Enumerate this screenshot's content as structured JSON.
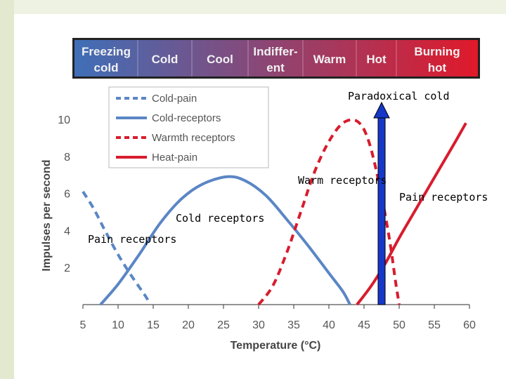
{
  "colors": {
    "band_start": "#3f6fb8",
    "band_end": "#e0192a",
    "cold_pain": "#5b86c5",
    "cold_receptors": "#5b86c5",
    "warmth_receptors": "#d81c2e",
    "heat_pain": "#d81c2e",
    "arrow": "#1638c8"
  },
  "temperature_band": [
    {
      "label_line1": "Freezing",
      "label_line2": "cold"
    },
    {
      "label_line1": "Cold",
      "label_line2": ""
    },
    {
      "label_line1": "Cool",
      "label_line2": ""
    },
    {
      "label_line1": "Indiffer-",
      "label_line2": "ent"
    },
    {
      "label_line1": "Warm",
      "label_line2": ""
    },
    {
      "label_line1": "Hot",
      "label_line2": ""
    },
    {
      "label_line1": "Burning",
      "label_line2": "hot"
    }
  ],
  "annotations": {
    "paradoxical_cold": "Paradoxical cold",
    "warm_receptors": "Warm receptors",
    "pain_receptors_right": "Pain receptors",
    "cold_receptors": "Cold receptors",
    "pain_receptors_left": "Pain receptors"
  },
  "chart_data": {
    "type": "line",
    "xlabel": "Temperature (°C)",
    "ylabel": "Impulses per second",
    "xlim": [
      5,
      60
    ],
    "ylim": [
      0,
      10
    ],
    "xticks": [
      5,
      10,
      15,
      20,
      25,
      30,
      35,
      40,
      45,
      50,
      55,
      60
    ],
    "yticks": [
      2,
      4,
      6,
      8,
      10
    ],
    "grid": false,
    "legend_position": "top-left",
    "paradoxical_cold_temperature": 47.5,
    "series": [
      {
        "name": "Cold-pain",
        "style": "dashed",
        "color": "#5b86c5",
        "points": [
          [
            5,
            6.1
          ],
          [
            6.5,
            5.2
          ],
          [
            8,
            4.1
          ],
          [
            10,
            2.7
          ],
          [
            12,
            1.5
          ],
          [
            14,
            0.4
          ],
          [
            14.5,
            0
          ]
        ]
      },
      {
        "name": "Cold-receptors",
        "style": "solid",
        "color": "#5b86c5",
        "points": [
          [
            7.5,
            0
          ],
          [
            10,
            1.1
          ],
          [
            13,
            2.7
          ],
          [
            16,
            4.4
          ],
          [
            19,
            5.7
          ],
          [
            22,
            6.5
          ],
          [
            25.5,
            6.9
          ],
          [
            28,
            6.7
          ],
          [
            31,
            5.9
          ],
          [
            34,
            4.6
          ],
          [
            37,
            3.2
          ],
          [
            40,
            1.7
          ],
          [
            42,
            0.7
          ],
          [
            43,
            0
          ]
        ]
      },
      {
        "name": "Warmth receptors",
        "style": "dashed",
        "color": "#d81c2e",
        "points": [
          [
            30,
            0
          ],
          [
            32,
            1.0
          ],
          [
            34,
            2.8
          ],
          [
            36,
            5.0
          ],
          [
            38,
            7.2
          ],
          [
            40,
            8.8
          ],
          [
            42,
            9.8
          ],
          [
            44,
            9.9
          ],
          [
            45.5,
            9.0
          ],
          [
            47,
            6.8
          ],
          [
            48.5,
            3.8
          ],
          [
            49.5,
            1.2
          ],
          [
            50,
            0
          ]
        ]
      },
      {
        "name": "Heat-pain",
        "style": "solid",
        "color": "#d81c2e",
        "points": [
          [
            44,
            0
          ],
          [
            46,
            1.0
          ],
          [
            48,
            2.2
          ],
          [
            50,
            3.6
          ],
          [
            52,
            4.9
          ],
          [
            54,
            6.2
          ],
          [
            56,
            7.5
          ],
          [
            58,
            8.8
          ],
          [
            59.5,
            9.8
          ]
        ]
      }
    ]
  }
}
